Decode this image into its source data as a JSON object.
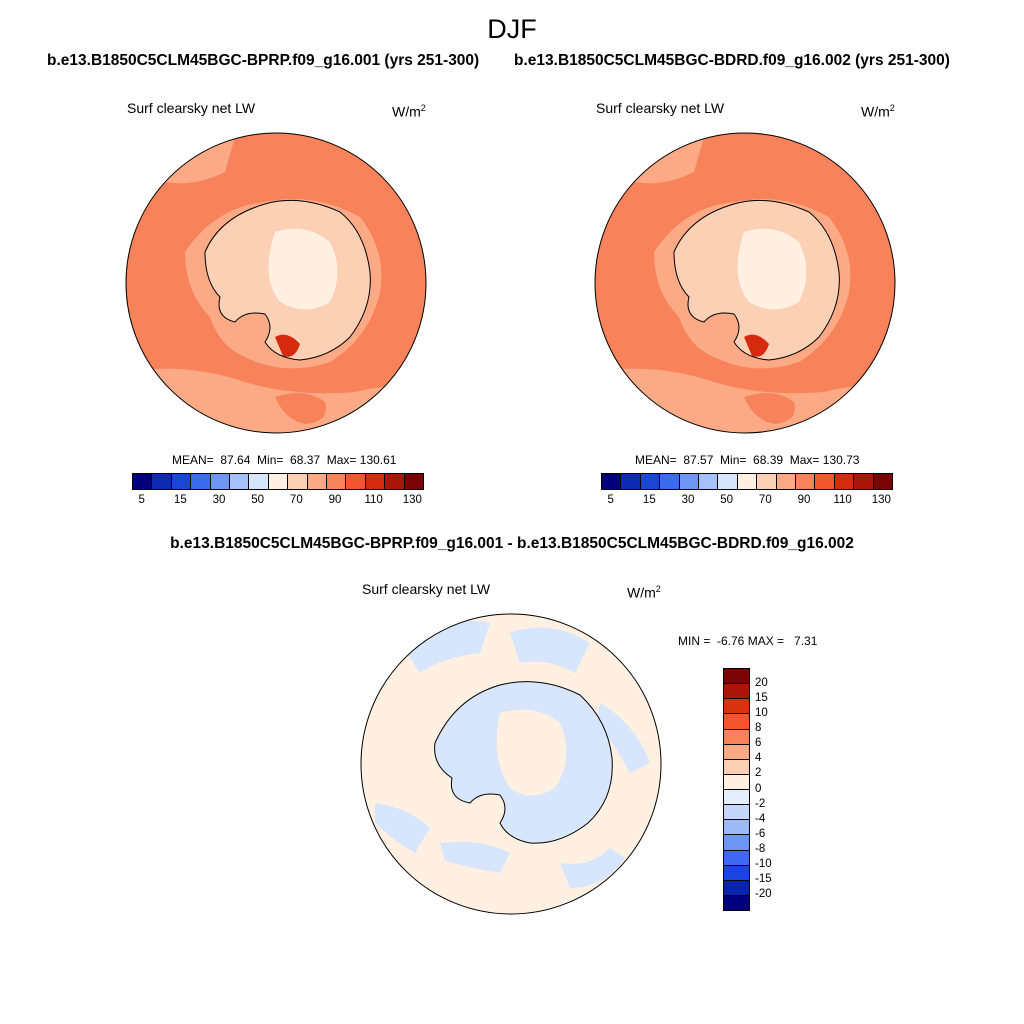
{
  "season": "DJF",
  "panels": {
    "left": {
      "case_title": "b.e13.B1850C5CLM45BGC-BPRP.f09_g16.001 (yrs 251-300)",
      "variable": "Surf clearsky net LW",
      "units_base": "W/m",
      "units_exp": "2",
      "stats": "MEAN=  87.64  Min=  68.37  Max= 130.61"
    },
    "right": {
      "case_title": "b.e13.B1850C5CLM45BGC-BDRD.f09_g16.002 (yrs 251-300)",
      "variable": "Surf clearsky net LW",
      "units_base": "W/m",
      "units_exp": "2",
      "stats": "MEAN=  87.57  Min=  68.39  Max= 130.73"
    },
    "diff": {
      "case_title": "b.e13.B1850C5CLM45BGC-BPRP.f09_g16.001 - b.e13.B1850C5CLM45BGC-BDRD.f09_g16.002",
      "variable": "Surf clearsky net LW",
      "units_base": "W/m",
      "units_exp": "2",
      "stats": "MIN =  -6.76 MAX =   7.31"
    }
  },
  "colorbar_abs": {
    "colors": [
      "#00007f",
      "#0d2bb2",
      "#1946d4",
      "#3b6cf0",
      "#6f95f5",
      "#a6c1fa",
      "#d7e6fd",
      "#fff0e2",
      "#fcd0b4",
      "#fbaa85",
      "#f8825a",
      "#f3552c",
      "#d62a0e",
      "#aa1608",
      "#7a0403"
    ],
    "labels": [
      "5",
      "15",
      "30",
      "50",
      "70",
      "90",
      "110",
      "130"
    ]
  },
  "colorbar_diff": {
    "colors": [
      "#7a0403",
      "#aa1608",
      "#d9320f",
      "#f3552c",
      "#f8825a",
      "#fbaa85",
      "#fcd0b4",
      "#fff0e2",
      "#e4eefc",
      "#c4d6fa",
      "#9dbaf7",
      "#6e94f4",
      "#3f67ef",
      "#1a45e0",
      "#0a24b0",
      "#00007f"
    ],
    "labels": [
      "20",
      "15",
      "10",
      "8",
      "6",
      "4",
      "2",
      "0",
      "-2",
      "-4",
      "-6",
      "-8",
      "-10",
      "-15",
      "-20"
    ]
  },
  "map_colors": {
    "ocean_main": "#f8825a",
    "ocean_light": "#fbaa85",
    "antarctica": "#fcd0b4",
    "antarctica_core": "#fff0e2",
    "hotspot": "#d62a0e",
    "diff_pos": "#fff0e2",
    "diff_neg": "#d7e6fd"
  }
}
